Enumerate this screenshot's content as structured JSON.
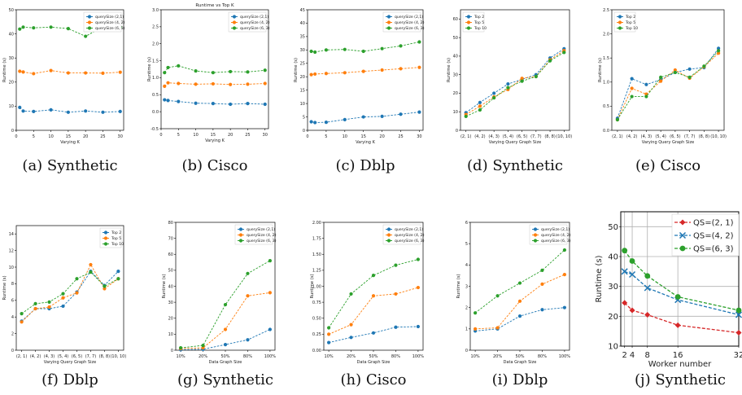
{
  "colors": {
    "blue": "#1f77b4",
    "orange": "#ff7f0e",
    "green": "#2ca02c",
    "red": "#d62728",
    "grid": "#b0b0b0"
  },
  "captions": [
    "(a) Synthetic",
    "(b) Cisco",
    "(c) Dblp",
    "(d) Synthetic",
    "(e) Cisco",
    "(f) Dblp",
    "(g) Synthetic",
    "(h) Cisco",
    "(i) Dblp",
    "(j) Synthetic"
  ],
  "chart_data": [
    {
      "type": "line",
      "title": "",
      "xlabel": "Varying K",
      "ylabel": "Runtime (s)",
      "xlim": [
        0,
        31
      ],
      "ylim": [
        0,
        50
      ],
      "xticks": [
        "0",
        "5",
        "10",
        "15",
        "20",
        "25",
        "30"
      ],
      "yticks": [
        "0",
        "10",
        "20",
        "30",
        "40",
        "50"
      ],
      "x": [
        1,
        2,
        5,
        10,
        15,
        20,
        25,
        30
      ],
      "legend": "top-right",
      "grid": false,
      "series": [
        {
          "name": "querySize (2,1)",
          "color": "blue",
          "values": [
            9.5,
            8,
            7.8,
            8.5,
            7.5,
            8,
            7.5,
            7.8
          ]
        },
        {
          "name": "querySize (4, 2)",
          "color": "orange",
          "values": [
            24.5,
            24.2,
            23.5,
            24.8,
            23.8,
            23.8,
            23.7,
            24.1
          ]
        },
        {
          "name": "querySize (6, 3)",
          "color": "green",
          "values": [
            42,
            42.8,
            42.5,
            42.8,
            42.2,
            39,
            43,
            42.8
          ]
        }
      ]
    },
    {
      "type": "line",
      "title": "Runtime vs Top K",
      "xlabel": "Varying K",
      "ylabel": "Runtime (s)",
      "xlim": [
        0,
        31
      ],
      "ylim": [
        -0.5,
        3.0
      ],
      "xticks": [
        "0",
        "5",
        "10",
        "15",
        "20",
        "25",
        "30"
      ],
      "yticks": [
        "-0.5",
        "0.0",
        "0.5",
        "1.0",
        "1.5",
        "2.0",
        "2.5",
        "3.0"
      ],
      "x": [
        1,
        2,
        5,
        10,
        15,
        20,
        25,
        30
      ],
      "legend": "top-right",
      "grid": false,
      "series": [
        {
          "name": "querySize (2,1)",
          "color": "blue",
          "values": [
            0.35,
            0.33,
            0.3,
            0.25,
            0.24,
            0.22,
            0.24,
            0.22
          ]
        },
        {
          "name": "querySize (4, 2)",
          "color": "orange",
          "values": [
            0.75,
            0.85,
            0.83,
            0.81,
            0.82,
            0.8,
            0.81,
            0.83
          ]
        },
        {
          "name": "querySize (6, 3)",
          "color": "green",
          "values": [
            1.15,
            1.3,
            1.35,
            1.2,
            1.15,
            1.18,
            1.17,
            1.22
          ]
        }
      ]
    },
    {
      "type": "line",
      "title": "",
      "xlabel": "Varying K",
      "ylabel": "Runtime (s)",
      "xlim": [
        0,
        31
      ],
      "ylim": [
        0,
        45
      ],
      "xticks": [
        "0",
        "5",
        "10",
        "15",
        "20",
        "25",
        "30"
      ],
      "yticks": [
        "0",
        "5",
        "10",
        "15",
        "20",
        "25",
        "30",
        "35",
        "40",
        "45"
      ],
      "x": [
        1,
        2,
        5,
        10,
        15,
        20,
        25,
        30
      ],
      "legend": "top-right",
      "grid": false,
      "series": [
        {
          "name": "querySize (2,1)",
          "color": "blue",
          "values": [
            3.2,
            2.9,
            3,
            4,
            5,
            5.2,
            6,
            6.8
          ]
        },
        {
          "name": "querySize (4, 2)",
          "color": "orange",
          "values": [
            20.8,
            21,
            21.2,
            21.5,
            22,
            22.5,
            23,
            23.5
          ]
        },
        {
          "name": "querySize (6, 3)",
          "color": "green",
          "values": [
            29.5,
            29.2,
            30,
            30.2,
            29.5,
            30.5,
            31.5,
            33
          ]
        }
      ]
    },
    {
      "type": "line",
      "title": "",
      "xlabel": "Varying Query Graph Size",
      "ylabel": "Runtime (s)",
      "ylim": [
        0,
        65
      ],
      "categories": [
        "(2, 1)",
        "(4, 2)",
        "(4, 3)",
        "(5, 4)",
        "(6, 5)",
        "(7, 7)",
        "(8, 8)",
        "(10, 10)"
      ],
      "yticks": [
        "0",
        "10",
        "20",
        "30",
        "40",
        "50",
        "60"
      ],
      "legend": "top-right",
      "grid": false,
      "series": [
        {
          "name": "Top 2",
          "color": "blue",
          "values": [
            9.5,
            15,
            20,
            25,
            27.5,
            30,
            39,
            44
          ]
        },
        {
          "name": "Top 5",
          "color": "orange",
          "values": [
            8.5,
            13,
            18,
            22,
            28,
            29,
            38,
            43
          ]
        },
        {
          "name": "Top 10",
          "color": "green",
          "values": [
            7.5,
            11,
            17.5,
            23,
            26.5,
            29,
            37.5,
            42
          ]
        }
      ]
    },
    {
      "type": "line",
      "title": "",
      "xlabel": "Varying Query Graph Size",
      "ylabel": "Runtime (s)",
      "ylim": [
        0,
        2.5
      ],
      "categories": [
        "(2, 1)",
        "(4, 2)",
        "(4, 3)",
        "(5, 4)",
        "(6, 5)",
        "(7, 7)",
        "(8, 8)",
        "(10, 10)"
      ],
      "yticks": [
        "0.0",
        "0.5",
        "1.0",
        "1.5",
        "2.0",
        "2.5"
      ],
      "legend": "top-right",
      "grid": false,
      "series": [
        {
          "name": "Top 2",
          "color": "blue",
          "values": [
            0.25,
            1.07,
            0.95,
            1.05,
            1.2,
            1.27,
            1.3,
            1.7
          ]
        },
        {
          "name": "Top 5",
          "color": "orange",
          "values": [
            0.22,
            0.87,
            0.75,
            1.02,
            1.25,
            1.08,
            1.32,
            1.6
          ]
        },
        {
          "name": "Top 10",
          "color": "green",
          "values": [
            0.22,
            0.7,
            0.7,
            1.1,
            1.2,
            1.1,
            1.33,
            1.65
          ]
        }
      ]
    },
    {
      "type": "line",
      "title": "",
      "xlabel": "Varying Query Graph Size",
      "ylabel": "Runtime (s)",
      "ylim": [
        0,
        15
      ],
      "categories": [
        "(2, 1)",
        "(4, 2)",
        "(4, 3)",
        "(5, 4)",
        "(6, 5)",
        "(7, 7)",
        "(8, 8)",
        "(10, 10)"
      ],
      "yticks": [
        "0",
        "2",
        "4",
        "6",
        "8",
        "10",
        "12",
        "14"
      ],
      "legend": "top-right",
      "grid": false,
      "series": [
        {
          "name": "Top 2",
          "color": "blue",
          "values": [
            3.5,
            5,
            5,
            5.3,
            7,
            9.5,
            7.8,
            9.5
          ]
        },
        {
          "name": "Top 5",
          "color": "orange",
          "values": [
            3.4,
            5,
            5.2,
            6.3,
            6.9,
            10.3,
            7.4,
            8.6
          ]
        },
        {
          "name": "Top 10",
          "color": "green",
          "values": [
            4.4,
            5.6,
            5.8,
            6.8,
            8.6,
            9.4,
            7.7,
            8.6
          ]
        }
      ]
    },
    {
      "type": "line",
      "title": "",
      "xlabel": "Data Graph Size",
      "ylabel": "Runtime (s)",
      "ylim": [
        0,
        80
      ],
      "categories": [
        "10%",
        "20%",
        "50%",
        "80%",
        "100%"
      ],
      "yticks": [
        "0",
        "10",
        "20",
        "30",
        "40",
        "50",
        "60",
        "70",
        "80"
      ],
      "legend": "top-right",
      "grid": false,
      "series": [
        {
          "name": "querySize (2,1)",
          "color": "blue",
          "values": [
            0.3,
            0.6,
            3.5,
            6.5,
            13
          ]
        },
        {
          "name": "querySize (4, 2)",
          "color": "orange",
          "values": [
            1,
            1.5,
            13,
            34,
            36
          ]
        },
        {
          "name": "querySize (6, 3)",
          "color": "green",
          "values": [
            1.5,
            3,
            28.5,
            48,
            56
          ]
        }
      ]
    },
    {
      "type": "line",
      "title": "",
      "xlabel": "Data Graph Size",
      "ylabel": "Runtime (s)",
      "ylim": [
        0,
        2.0
      ],
      "categories": [
        "10%",
        "20%",
        "50%",
        "80%",
        "100%"
      ],
      "yticks": [
        "0.00",
        "0.25",
        "0.50",
        "0.75",
        "1.00",
        "1.25",
        "1.50",
        "1.75",
        "2.00"
      ],
      "legend": "top-right",
      "grid": false,
      "series": [
        {
          "name": "querySize (2,1)",
          "color": "blue",
          "values": [
            0.12,
            0.2,
            0.27,
            0.36,
            0.37
          ]
        },
        {
          "name": "querySize (4, 2)",
          "color": "orange",
          "values": [
            0.25,
            0.4,
            0.85,
            0.88,
            0.98
          ]
        },
        {
          "name": "querySize (6, 3)",
          "color": "green",
          "values": [
            0.35,
            0.88,
            1.17,
            1.33,
            1.42
          ]
        }
      ]
    },
    {
      "type": "line",
      "title": "",
      "xlabel": "Data Graph Size",
      "ylabel": "Runtime (s)",
      "ylim": [
        0,
        6
      ],
      "categories": [
        "10%",
        "20%",
        "50%",
        "80%",
        "100%"
      ],
      "yticks": [
        "0",
        "1",
        "2",
        "3",
        "4",
        "5",
        "6"
      ],
      "legend": "top-right",
      "grid": false,
      "series": [
        {
          "name": "querySize (2,1)",
          "color": "blue",
          "values": [
            0.9,
            1,
            1.6,
            1.9,
            2
          ]
        },
        {
          "name": "querySize (4, 2)",
          "color": "orange",
          "values": [
            1,
            1.05,
            2.3,
            3.1,
            3.55
          ]
        },
        {
          "name": "querySize (6, 3)",
          "color": "green",
          "values": [
            1.75,
            2.55,
            3.15,
            3.75,
            4.7
          ]
        }
      ]
    },
    {
      "type": "line",
      "title": "",
      "xlabel": "Worker number",
      "ylabel": "Runtime (s)",
      "xlim": [
        1,
        32
      ],
      "ylim": [
        10,
        55
      ],
      "xticks": [
        "2",
        "4",
        "8",
        "16",
        "32"
      ],
      "xtick_values": [
        2,
        4,
        8,
        16,
        32
      ],
      "yticks": [
        "10",
        "20",
        "30",
        "40",
        "50"
      ],
      "x": [
        2,
        4,
        8,
        16,
        32
      ],
      "legend": "top-right",
      "grid": true,
      "series": [
        {
          "name": "QS=(2, 1)",
          "color": "red",
          "marker": "diamond",
          "values": [
            24.5,
            22,
            20.5,
            17,
            14.5
          ]
        },
        {
          "name": "QS=(4, 2)",
          "color": "blue",
          "marker": "x",
          "values": [
            35,
            34,
            29.5,
            25.5,
            20.5
          ]
        },
        {
          "name": "QS=(6, 3)",
          "color": "green",
          "marker": "circle",
          "values": [
            42,
            38.5,
            33.5,
            26.5,
            22
          ]
        }
      ]
    }
  ]
}
